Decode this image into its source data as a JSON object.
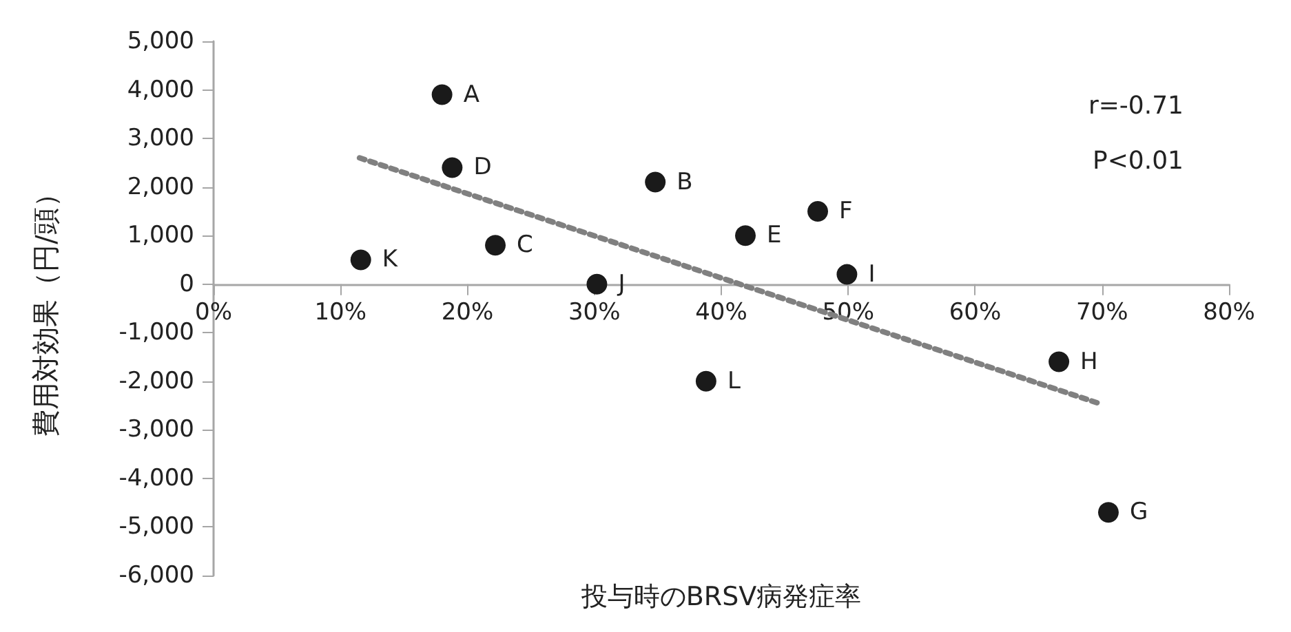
{
  "chart_data": {
    "type": "scatter",
    "xlabel": "投与時のBRSV病発症率",
    "ylabel": "費用対効果（円/頭）",
    "xlim": [
      0,
      0.8
    ],
    "xticks": [
      {
        "value": 0,
        "label": "0%"
      },
      {
        "value": 0.1,
        "label": "10%"
      },
      {
        "value": 0.2,
        "label": "20%"
      },
      {
        "value": 0.3,
        "label": "30%"
      },
      {
        "value": 0.4,
        "label": "40%"
      },
      {
        "value": 0.5,
        "label": "50%"
      },
      {
        "value": 0.6,
        "label": "60%"
      },
      {
        "value": 0.7,
        "label": "70%"
      },
      {
        "value": 0.8,
        "label": "80%"
      }
    ],
    "ylim": [
      -6000,
      5000
    ],
    "yticks": [
      {
        "value": -6000,
        "label": "-6,000"
      },
      {
        "value": -5000,
        "label": "-5,000"
      },
      {
        "value": -4000,
        "label": "-4,000"
      },
      {
        "value": -3000,
        "label": "-3,000"
      },
      {
        "value": -2000,
        "label": "-2,000"
      },
      {
        "value": -1000,
        "label": "-1,000"
      },
      0,
      {
        "value": 1000,
        "label": "1,000"
      },
      {
        "value": 2000,
        "label": "2,000"
      },
      {
        "value": 3000,
        "label": "3,000"
      },
      {
        "value": 4000,
        "label": "4,000"
      },
      {
        "value": 5000,
        "label": "5,000"
      }
    ],
    "grid": false,
    "series": [
      {
        "color": "#1a1a1a",
        "marker": "circle",
        "x": [
          0.18,
          0.348,
          0.222,
          0.188,
          0.419,
          0.476,
          0.705,
          0.666,
          0.499,
          0.302,
          0.116,
          0.388
        ],
        "values": [
          3900,
          2100,
          800,
          2400,
          1000,
          1500,
          -4700,
          -1600,
          200,
          0,
          500,
          -2000
        ],
        "value_labels": [
          "A",
          "B",
          "C",
          "D",
          "E",
          "F",
          "G",
          "H",
          "I",
          "J",
          "K",
          "L"
        ]
      },
      {
        "type": "line",
        "color": "#808080",
        "marker": "none",
        "line_style": "dotted",
        "x": [
          0.115,
          0.697
        ],
        "values": [
          2600,
          -2450
        ]
      }
    ],
    "annotations": [
      "r=-0.71",
      "P<0.01"
    ]
  }
}
